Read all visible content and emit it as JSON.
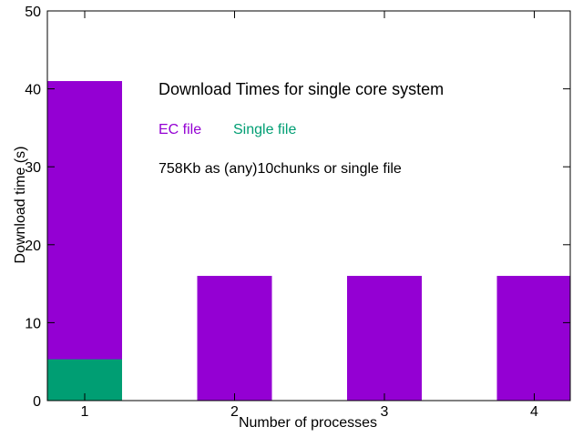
{
  "chart_data": {
    "type": "bar",
    "categories": [
      "1",
      "2",
      "3",
      "4"
    ],
    "series": [
      {
        "name": "EC file",
        "color": "#9400d3",
        "values": [
          41,
          16,
          16,
          16
        ]
      },
      {
        "name": "Single file",
        "color": "#009e73",
        "values": [
          5.3,
          null,
          null,
          null
        ]
      }
    ],
    "title": "Download Times for single core system",
    "subtitle": "758Kb as (any)10chunks or single file",
    "xlabel": "Number of processes",
    "ylabel": "Download time (s)",
    "ylim": [
      0,
      50
    ],
    "yticks": [
      0,
      10,
      20,
      30,
      40,
      50
    ],
    "grid": false,
    "legend_position": "top-center",
    "overlay": true
  }
}
